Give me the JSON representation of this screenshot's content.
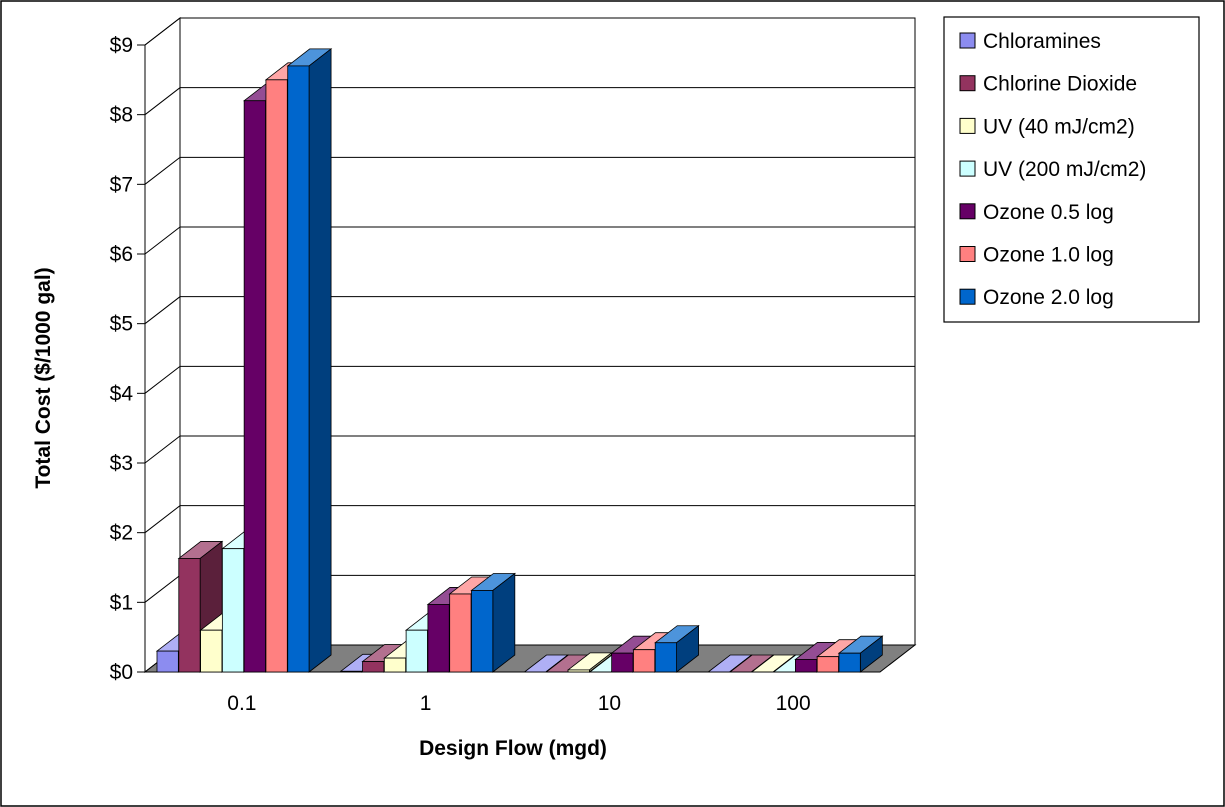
{
  "chart_data": {
    "type": "bar",
    "xlabel": "Design Flow (mgd)",
    "ylabel": "Total Cost  ($/1000 gal)",
    "categories": [
      "0.1",
      "1",
      "10",
      "100"
    ],
    "ylim": [
      0,
      9
    ],
    "yticks": [
      "$0",
      "$1",
      "$2",
      "$3",
      "$4",
      "$5",
      "$6",
      "$7",
      "$8",
      "$9"
    ],
    "grid": true,
    "legend": "right",
    "series": [
      {
        "name": "Chloramines",
        "values": [
          0.3,
          0.01,
          0.0,
          0.0
        ],
        "color": "#8c8cf0"
      },
      {
        "name": "Chlorine Dioxide",
        "values": [
          1.63,
          0.15,
          0.0,
          0.0
        ],
        "color": "#93335f"
      },
      {
        "name": "UV (40 mJ/cm2)",
        "values": [
          0.6,
          0.2,
          0.03,
          0.0
        ],
        "color": "#ffffcc"
      },
      {
        "name": "UV (200 mJ/cm2)",
        "values": [
          1.77,
          0.6,
          0.0,
          0.0
        ],
        "color": "#ccffff"
      },
      {
        "name": "Ozone 0.5 log",
        "values": [
          8.2,
          0.97,
          0.27,
          0.18
        ],
        "color": "#660066"
      },
      {
        "name": "Ozone 1.0 log",
        "values": [
          8.5,
          1.12,
          0.32,
          0.22
        ],
        "color": "#ff8080"
      },
      {
        "name": "Ozone 2.0 log",
        "values": [
          8.7,
          1.17,
          0.42,
          0.27
        ],
        "color": "#0066cc"
      }
    ]
  }
}
